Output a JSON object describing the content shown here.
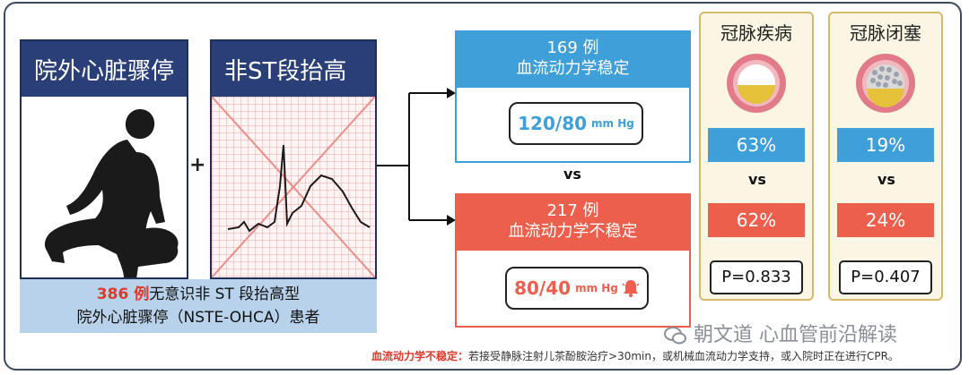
{
  "left": {
    "panel1_title": "院外心脏骤停",
    "panel2_title": "非ST段抬高",
    "plus": "+",
    "caption_num": "386 例",
    "caption_line1": "无意识非 ST 段抬高型",
    "caption_line2": "院外心脏骤停（NSTE-OHCA）患者"
  },
  "stable": {
    "count": "169 例",
    "label": "血流动力学稳定",
    "bp_value": "120/80",
    "bp_unit": "mm Hg",
    "color": "#3f9fd8"
  },
  "vs_label": "vs",
  "unstable": {
    "count": "217 例",
    "label": "血流动力学不稳定",
    "bp_value": "80/40",
    "bp_unit": "mm Hg",
    "color": "#ec5f4d",
    "bp_color": "#ec5f4d"
  },
  "cad": {
    "title": "冠脉疾病",
    "stable_pct": "63%",
    "vs": "vs",
    "unstable_pct": "62%",
    "p_value": "P=0.833"
  },
  "occlusion": {
    "title": "冠脉闭塞",
    "stable_pct": "19%",
    "vs": "vs",
    "unstable_pct": "24%",
    "p_value": "P=0.407"
  },
  "footnote": {
    "key": "血流动力学不稳定：",
    "text": "若接受静脉注射儿茶酚胺治疗>30min，或机械血流动力学支持，或入院时正在进行CPR。"
  },
  "watermark": "朝文道 心血管前沿解读",
  "icons": [
    "person-cpr-icon",
    "ecg-icon",
    "alarm-bell-icon",
    "artery-icon",
    "wechat-icon"
  ]
}
